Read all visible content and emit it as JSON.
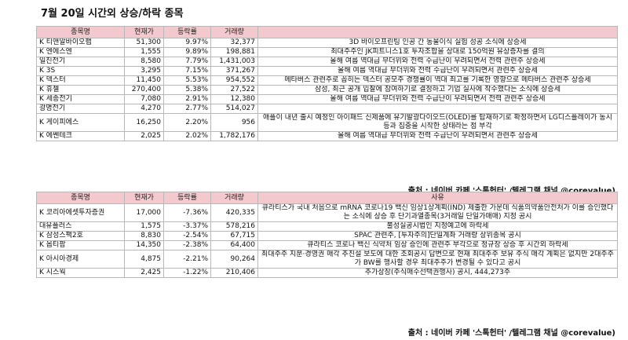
{
  "title": "7월 20일  시간외 상승/하락 종목",
  "table1": {
    "headers": [
      "종목명",
      "현재가",
      "등락률",
      "거래량",
      ""
    ],
    "rows": [
      {
        "name": "K 티앤알바이오팹",
        "price": "51,300",
        "rate": "9.97%",
        "volume": "32,377",
        "reason": "3D 바이오프린팅 인공 간 동물이식 실험 성공 소식에 상승세"
      },
      {
        "name": "K 엔에스엔",
        "price": "1,555",
        "rate": "9.89%",
        "volume": "198,881",
        "reason": "최대주주인 JK피트니스1호 투자조합을 상대로 150억원 유상증자를 결의"
      },
      {
        "name": "  일진전기",
        "price": "8,580",
        "rate": "7.79%",
        "volume": "1,431,003",
        "reason": "올해 여름 역대급 무더위와 전력 수급난이 우려되면서 전력 관련주 상승세"
      },
      {
        "name": "K 3S",
        "price": "3,295",
        "rate": "7.15%",
        "volume": "371,267",
        "reason": "올해 여름 역대급 무더위와 전력 수급난이 우려되면서 관련주 상승세"
      },
      {
        "name": "K 덱스터",
        "price": "11,450",
        "rate": "5.53%",
        "volume": "954,552",
        "reason": "메타버스 관련주로 꼽히는 덱스터 공모주 경쟁률이 역대 최고를 기록한 영향으로 메타버스 관련주 상승세"
      },
      {
        "name": "K 휴젤",
        "price": "270,400",
        "rate": "5.38%",
        "volume": "27,522",
        "reason": "삼성, 최근 공개 입찰에 참여하기로 결정하고 기업 실사에 착수했다는 소식에 상승세"
      },
      {
        "name": "K 세종전기",
        "price": "7,080",
        "rate": "2.91%",
        "volume": "12,380",
        "reason": "올해 여름 역대급 무더위와 전력 수급난이 우려되면서 전력 관련주 상승세"
      },
      {
        "name": "  광명전기",
        "price": "4,270",
        "rate": "2.77%",
        "volume": "514,027",
        "reason": ""
      },
      {
        "name": "K 게이피에스",
        "price": "16,250",
        "rate": "2.20%",
        "volume": "956",
        "reason": "애플이 내년 출시 예정인 아이패드 신제품에 유기발광다이오드(OLED)를 탑재하기로 확정하면서 LG디스플레이가 동시 등과 집중을 시작한 상태라는 점 부각"
      },
      {
        "name": "K 에쎈테크",
        "price": "2,025",
        "rate": "2.02%",
        "volume": "1,782,176",
        "reason": "올해 여름 역대급 무더위와 전력 수급난이 우려되면서 관련주 상승세"
      }
    ],
    "source": "출처 : 네이버 카페 '스톡헌터' /텔레그램 채널 @corevalue)"
  },
  "table2": {
    "headers": [
      "종목명",
      "현재가",
      "등락률",
      "거래량",
      "사유"
    ],
    "rows": [
      {
        "name": "K 코리아에셋투자증권",
        "price": "17,000",
        "rate": "-7.36%",
        "volume": "420,335",
        "reason": "큐라티스가 국내 처음으로 mRNA 코로나19 백신 임상1상계획(IND) 제출한 가운데 식품의약품안전처가 이를 승인했다는 소식에 상승 후 단기과열종목(3거래일 단일가매매) 지정 공시"
      },
      {
        "name": "  대유플러스",
        "price": "1,575",
        "rate": "-3.37%",
        "volume": "578,216",
        "reason": "불성실공시법인 지정예고에 하락세"
      },
      {
        "name": "K 삼성스팩2호",
        "price": "8,830",
        "rate": "-2.54%",
        "volume": "67,715",
        "reason": "SPAC 관련주, [투자주의]단일계좌 거래량 상위종목 공시"
      },
      {
        "name": "K 옵티팜",
        "price": "14,350",
        "rate": "-2.38%",
        "volume": "64,400",
        "reason": "큐라티스 코로나 백신 식약처 임상 승인에 관련주 부각으로 정규장 상승 후 시간외 하락세"
      },
      {
        "name": "K 아시아경제",
        "price": "4,875",
        "rate": "-2.21%",
        "volume": "90,264",
        "reason": "최대주주 지분·경영권 매각 추진설 보도에 대한 조회공시 답변으로 현재 최대주주 보유 주식 매각 계획은 없지만 2대주주가 BW를 행사할 경우 최대주주가 변경될 수 있다고 공시"
      },
      {
        "name": "K 시스웍",
        "price": "2,425",
        "rate": "-1.22%",
        "volume": "210,406",
        "reason": "추가상장(주식매수선택권행사) 공시, 444,273주"
      }
    ],
    "source": "출처 : 네이버 카페 '스톡헌터' /텔레그램 채널 @corevalue)"
  }
}
